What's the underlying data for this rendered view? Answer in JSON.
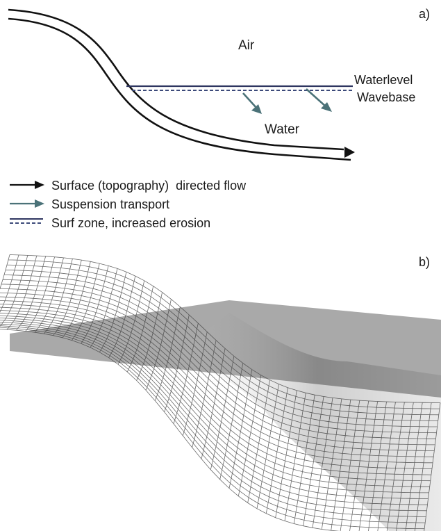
{
  "panel_a": {
    "letter": "a)",
    "labels": {
      "air": "Air",
      "water": "Water",
      "waterlevel": "Waterlevel",
      "wavebase": "Wavebase"
    },
    "colors": {
      "surface_flow": "#111111",
      "suspension": "#4b7278",
      "waterlevel_line": "#2e3560",
      "wavebase_dash": "#3c4a7a"
    }
  },
  "legend": [
    {
      "symbol": "solid-arrow",
      "color": "#111111",
      "text": "Surface (topography)  directed flow"
    },
    {
      "symbol": "teal-arrow",
      "color": "#4b7278",
      "text": "Suspension transport"
    },
    {
      "symbol": "dashed-line",
      "color": "#2e3560",
      "text": "Surf zone, increased erosion"
    }
  ],
  "panel_b": {
    "letter": "b)",
    "colors": {
      "water_plane": "#a9a9a9",
      "mesh": "#3a3a3a"
    }
  }
}
